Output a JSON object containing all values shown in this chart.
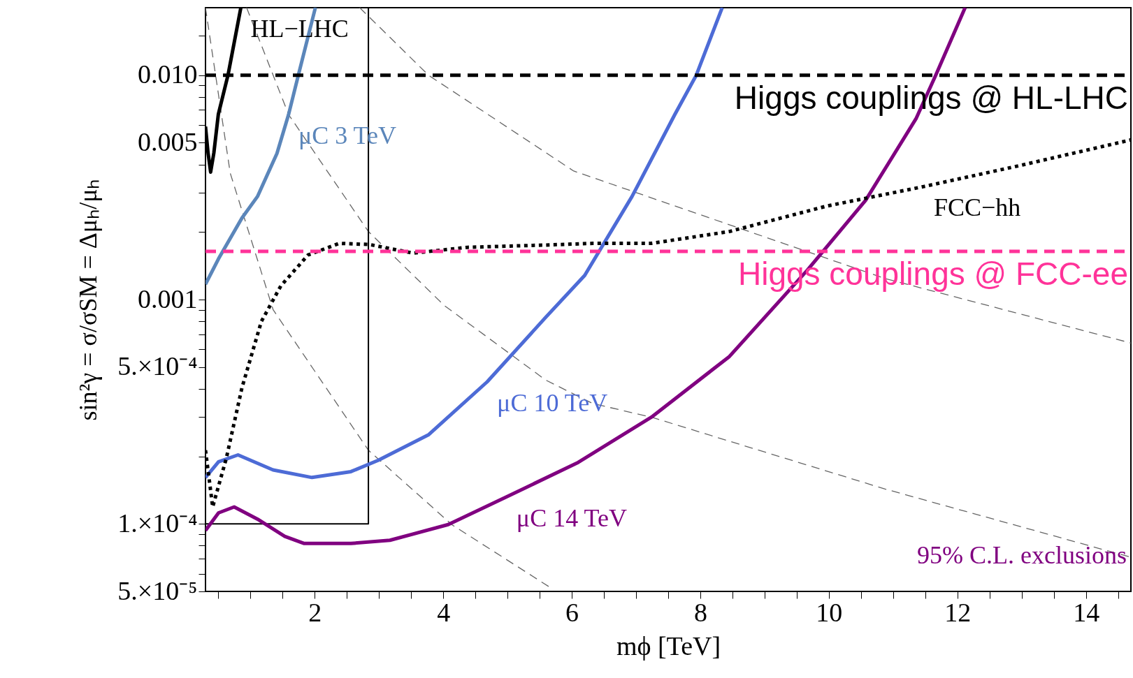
{
  "chart_data": {
    "type": "line",
    "xlabel": "mϕ  [TeV]",
    "ylabel": "sin²γ  =  σ/σSM  =  Δμₕ/μₕ",
    "log": "y",
    "grid": false,
    "xlim": [
      0.3,
      14.7
    ],
    "xticks": [
      2,
      4,
      6,
      8,
      10,
      12,
      14,
      {
        "value": 0.5,
        "label": null
      },
      {
        "value": 1,
        "label": null
      },
      {
        "value": 1.5,
        "label": null
      },
      {
        "value": 2.5,
        "label": null
      },
      {
        "value": 3,
        "label": null
      },
      {
        "value": 3.5,
        "label": null
      },
      {
        "value": 4.5,
        "label": null
      },
      {
        "value": 5,
        "label": null
      },
      {
        "value": 5.5,
        "label": null
      },
      {
        "value": 6.5,
        "label": null
      },
      {
        "value": 7,
        "label": null
      },
      {
        "value": 7.5,
        "label": null
      },
      {
        "value": 8.5,
        "label": null
      },
      {
        "value": 9,
        "label": null
      },
      {
        "value": 9.5,
        "label": null
      },
      {
        "value": 10.5,
        "label": null
      },
      {
        "value": 11,
        "label": null
      },
      {
        "value": 11.5,
        "label": null
      },
      {
        "value": 12.5,
        "label": null
      },
      {
        "value": 13,
        "label": null
      },
      {
        "value": 13.5,
        "label": null
      },
      {
        "value": 14.5,
        "label": null
      }
    ],
    "ylim": [
      5e-05,
      0.02
    ],
    "yticks": [
      {
        "value": 5e-05,
        "label": "5.×10⁻⁵"
      },
      {
        "value": 0.0001,
        "label": "1.×10⁻⁴"
      },
      {
        "value": 0.0005,
        "label": "5.×10⁻⁴"
      },
      {
        "value": 0.001,
        "label": "0.001"
      },
      {
        "value": 0.005,
        "label": "0.005"
      },
      {
        "value": 0.01,
        "label": "0.010"
      },
      {
        "value": 6e-05,
        "label": null
      },
      {
        "value": 7e-05,
        "label": null
      },
      {
        "value": 8e-05,
        "label": null
      },
      {
        "value": 9e-05,
        "label": null
      },
      {
        "value": 0.0002,
        "label": null
      },
      {
        "value": 0.0003,
        "label": null
      },
      {
        "value": 0.0004,
        "label": null
      },
      {
        "value": 0.0006,
        "label": null
      },
      {
        "value": 0.0007,
        "label": null
      },
      {
        "value": 0.0008,
        "label": null
      },
      {
        "value": 0.0009,
        "label": null
      },
      {
        "value": 0.002,
        "label": null
      },
      {
        "value": 0.003,
        "label": null
      },
      {
        "value": 0.004,
        "label": null
      },
      {
        "value": 0.006,
        "label": null
      },
      {
        "value": 0.007,
        "label": null
      },
      {
        "value": 0.008,
        "label": null
      },
      {
        "value": 0.009,
        "label": null
      },
      {
        "value": 0.015,
        "label": null
      }
    ],
    "series": [
      {
        "color": "#666666",
        "line_style": "dashed",
        "x": [
          0.3,
          0.685,
          1.353,
          2.835,
          4.138,
          5.713
        ],
        "values": [
          0.02,
          0.00366,
          0.0009,
          0.000213,
          9.9e-05,
          5.1e-05
        ]
      },
      {
        "color": "#666666",
        "line_style": "dashed",
        "x": [
          0.94,
          1.593,
          2.835,
          4.017,
          5.592,
          6.325,
          7.239,
          10.875,
          14.7
        ],
        "values": [
          0.02,
          0.00668,
          0.00201,
          0.00094,
          0.000438,
          0.000344,
          0.000299,
          0.000143,
          7.1e-05
        ]
      },
      {
        "color": "#666666",
        "line_style": "dashed",
        "x": [
          2.7,
          3.77,
          6.03,
          10.88,
          14.7
        ],
        "values": [
          0.02,
          0.01,
          0.00374,
          0.00124,
          0.00064
        ]
      },
      {
        "color": "#000000",
        "line_style": "solid",
        "x": [
          0.3,
          2.835,
          2.835
        ],
        "values": [
          0.0001,
          0.0001,
          0.02
        ]
      },
      {
        "color": "#000000",
        "line_style": "solid",
        "x": [
          0.3,
          0.34,
          0.38,
          0.43,
          0.5,
          0.65,
          0.85
        ],
        "values": [
          0.0059,
          0.0045,
          0.0037,
          0.0045,
          0.0067,
          0.01,
          0.02
        ]
      },
      {
        "color": "#5b86ba",
        "line_style": "solid",
        "x": [
          0.3,
          0.503,
          0.867,
          1.109,
          1.412,
          1.593,
          1.745,
          2.01
        ],
        "values": [
          0.00117,
          0.00152,
          0.00231,
          0.00288,
          0.00448,
          0.00668,
          0.01,
          0.02
        ]
      },
      {
        "color": "#4d6bd6",
        "line_style": "solid",
        "x": [
          0.3,
          0.503,
          0.806,
          1.351,
          1.957,
          2.563,
          2.987,
          3.774,
          4.684,
          5.592,
          6.2,
          6.937,
          7.603,
          7.937,
          8.34
        ],
        "values": [
          0.000161,
          0.000189,
          0.000203,
          0.000174,
          0.000161,
          0.000171,
          0.000192,
          0.00025,
          0.00043,
          0.000832,
          0.00128,
          0.00288,
          0.00668,
          0.01,
          0.02
        ]
      },
      {
        "color": "#800080",
        "line_style": "solid",
        "x": [
          0.3,
          0.503,
          0.746,
          1.109,
          1.533,
          1.836,
          2.563,
          3.169,
          4.077,
          4.986,
          6.1,
          7.239,
          8.451,
          9.663,
          10.572,
          11.36,
          11.663,
          12.12
        ],
        "values": [
          9.35e-05,
          0.000112,
          0.000119,
          0.000105,
          8.8e-05,
          8.18e-05,
          8.18e-05,
          8.45e-05,
          9.93e-05,
          0.000132,
          0.000188,
          0.000299,
          0.000557,
          0.00135,
          0.00277,
          0.00643,
          0.01,
          0.02
        ]
      },
      {
        "color": "#000000",
        "line_style": "dotted",
        "x": [
          0.3,
          0.412,
          0.624,
          0.867,
          1.169,
          1.472,
          1.896,
          2.382,
          2.85,
          3.532,
          4.381,
          5.592,
          6.325,
          7.239,
          8.451,
          9.966,
          11.48,
          12.996,
          14.7
        ],
        "values": [
          0.000213,
          0.000119,
          0.000196,
          0.000404,
          0.000798,
          0.00115,
          0.00158,
          0.00178,
          0.00176,
          0.00161,
          0.00171,
          0.00175,
          0.00178,
          0.00178,
          0.00201,
          0.00261,
          0.00319,
          0.00397,
          0.00515
        ]
      }
    ],
    "ref_lines": [
      {
        "axis": "y",
        "value": 0.01,
        "label": "Higgs couplings @ HL-LHC",
        "color": "#000000",
        "line_style": "dashed"
      },
      {
        "axis": "y",
        "value": 0.00164,
        "label": "Higgs couplings @ FCC-ee",
        "color": "#ff3399",
        "line_style": "dashed"
      }
    ],
    "annotations": [
      {
        "text": "HL−LHC",
        "x": 0.85,
        "y": 0.02
      },
      {
        "text": "μC 3 TeV",
        "x": 1.593,
        "y": 0.00668
      },
      {
        "text": "μC 10 TeV",
        "x": 4.684,
        "y": 0.00043
      },
      {
        "text": "μC 14 TeV",
        "x": 4.986,
        "y": 0.000132
      },
      {
        "text": "FCC−hh",
        "x": 11.48,
        "y": 0.00319
      },
      "95% C.L. exclusions"
    ]
  }
}
